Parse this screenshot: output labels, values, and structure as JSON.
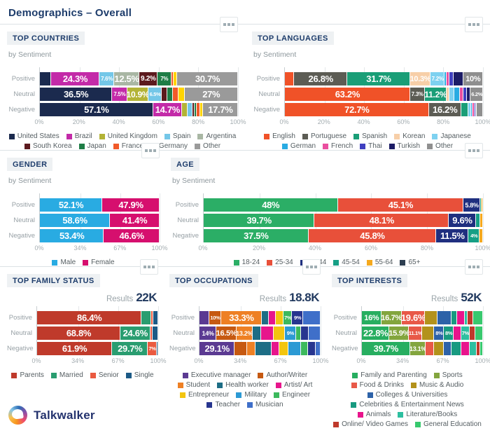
{
  "header": {
    "title": "Demographics – Overall"
  },
  "footer": {
    "logo_text": "Talkwalker",
    "logo_icon": "talkwalker-logo-icon"
  },
  "ui": {
    "menu_icon": "ellipsis-icon",
    "results_label": "Results"
  },
  "chart_data": [
    {
      "id": "top-countries",
      "type": "bar",
      "stacked": true,
      "orientation": "horizontal",
      "title": "TOP COUNTRIES",
      "subtitle": "by Sentiment",
      "results": null,
      "categories": [
        "Positive",
        "Neutral",
        "Negative"
      ],
      "xticks": [
        "0%",
        "20%",
        "40%",
        "60%",
        "80%",
        "100%"
      ],
      "xlim": [
        0,
        100
      ],
      "series": [
        {
          "name": "United States",
          "color": "#1b2a4e",
          "values": [
            5.7,
            36.5,
            57.1
          ],
          "labels": [
            null,
            "36.5%",
            "57.1%"
          ]
        },
        {
          "name": "Brazil",
          "color": "#c32aa8",
          "values": [
            24.3,
            7.5,
            14.7
          ],
          "labels": [
            "24.3%",
            "7.5%",
            "14.7%"
          ]
        },
        {
          "name": "United Kingdom",
          "color": "#b3b336",
          "values": [
            0,
            10.9,
            2.7
          ],
          "labels": [
            null,
            "10.9%",
            null
          ]
        },
        {
          "name": "Spain",
          "color": "#74c7e8",
          "values": [
            7.6,
            6.5,
            2.5
          ],
          "labels": [
            "7.6%",
            "6.5%",
            null
          ]
        },
        {
          "name": "Argentina",
          "color": "#a9b7a4",
          "values": [
            12.5,
            0,
            0
          ],
          "labels": [
            "12.5%",
            null,
            null
          ]
        },
        {
          "name": "South Korea",
          "color": "#5c1a1e",
          "values": [
            9.2,
            2.9,
            1.2
          ],
          "labels": [
            "9.2%",
            null,
            null
          ]
        },
        {
          "name": "Japan",
          "color": "#1e7d46",
          "values": [
            7,
            2.9,
            0.8
          ],
          "labels": [
            "7%",
            null,
            null
          ]
        },
        {
          "name": "France",
          "color": "#f15a29",
          "values": [
            1.3,
            2.9,
            2.0
          ],
          "labels": [
            null,
            null,
            null
          ]
        },
        {
          "name": "Germany",
          "color": "#ffd400",
          "values": [
            1.7,
            2.9,
            1.3
          ],
          "labels": [
            null,
            null,
            null
          ]
        },
        {
          "name": "Other",
          "color": "#9a9a9a",
          "values": [
            30.7,
            27,
            17.7
          ],
          "labels": [
            "30.7%",
            "27%",
            "17.7%"
          ]
        }
      ]
    },
    {
      "id": "top-languages",
      "type": "bar",
      "stacked": true,
      "orientation": "horizontal",
      "title": "TOP LANGUAGES",
      "subtitle": "by Sentiment",
      "results": null,
      "categories": [
        "Positive",
        "Neutral",
        "Negative"
      ],
      "xticks": [
        "0%",
        "20%",
        "40%",
        "60%",
        "80%",
        "100%"
      ],
      "xlim": [
        0,
        100
      ],
      "series": [
        {
          "name": "English",
          "color": "#f05228",
          "values": [
            4.7,
            63.2,
            72.7
          ],
          "labels": [
            null,
            "63.2%",
            "72.7%"
          ]
        },
        {
          "name": "Portuguese",
          "color": "#5c5c54",
          "values": [
            26.8,
            7.3,
            16.2
          ],
          "labels": [
            "26.8%",
            "7.3%",
            "16.2%"
          ]
        },
        {
          "name": "Spanish",
          "color": "#1a9e77",
          "values": [
            31.7,
            11.2,
            3.8
          ],
          "labels": [
            "31.7%",
            "11.2%",
            null
          ]
        },
        {
          "name": "Korean",
          "color": "#f7cfa8",
          "values": [
            10.3,
            1.5,
            0
          ],
          "labels": [
            "10.3%",
            null,
            null
          ]
        },
        {
          "name": "Japanese",
          "color": "#7ed1f0",
          "values": [
            7.2,
            2.5,
            1.2
          ],
          "labels": [
            "7.2%",
            null,
            null
          ]
        },
        {
          "name": "German",
          "color": "#29abe2",
          "values": [
            1.0,
            2.5,
            0.8
          ],
          "labels": [
            null,
            null,
            null
          ]
        },
        {
          "name": "French",
          "color": "#ea4f9f",
          "values": [
            1.5,
            1.8,
            1.2
          ],
          "labels": [
            null,
            null,
            null
          ]
        },
        {
          "name": "Thai",
          "color": "#4040c0",
          "values": [
            2.0,
            2.0,
            0.6
          ],
          "labels": [
            null,
            null,
            null
          ]
        },
        {
          "name": "Turkish",
          "color": "#1c1c66",
          "values": [
            4.8,
            1.8,
            0.5
          ],
          "labels": [
            null,
            null,
            null
          ]
        },
        {
          "name": "Other",
          "color": "#8f8f8f",
          "values": [
            10,
            6.2,
            3.0
          ],
          "labels": [
            "10%",
            "6.2%",
            null
          ]
        }
      ]
    },
    {
      "id": "gender",
      "type": "bar",
      "stacked": true,
      "orientation": "horizontal",
      "title": "GENDER",
      "subtitle": "by Sentiment",
      "results": null,
      "categories": [
        "Positive",
        "Neutral",
        "Negative"
      ],
      "xticks": [
        "0%",
        "34%",
        "67%",
        "100%"
      ],
      "xlim": [
        0,
        100
      ],
      "series": [
        {
          "name": "Male",
          "color": "#29abe2",
          "values": [
            52.1,
            58.6,
            53.4
          ],
          "labels": [
            "52.1%",
            "58.6%",
            "53.4%"
          ]
        },
        {
          "name": "Female",
          "color": "#d60f6e",
          "values": [
            47.9,
            41.4,
            46.6
          ],
          "labels": [
            "47.9%",
            "41.4%",
            "46.6%"
          ]
        }
      ]
    },
    {
      "id": "age",
      "type": "bar",
      "stacked": true,
      "orientation": "horizontal",
      "title": "AGE",
      "subtitle": "by Sentiment",
      "results": null,
      "categories": [
        "Positive",
        "Neutral",
        "Negative"
      ],
      "xticks": [
        "0%",
        "20%",
        "40%",
        "60%",
        "80%",
        "100%"
      ],
      "xlim": [
        0,
        100
      ],
      "series": [
        {
          "name": "18-24",
          "color": "#2bae66",
          "values": [
            48,
            39.7,
            37.5
          ],
          "labels": [
            "48%",
            "39.7%",
            "37.5%"
          ]
        },
        {
          "name": "25-34",
          "color": "#e8503a",
          "values": [
            45.1,
            48.1,
            45.8
          ],
          "labels": [
            "45.1%",
            "48.1%",
            "45.8%"
          ]
        },
        {
          "name": "35-44",
          "color": "#1f2f7f",
          "values": [
            5.8,
            9.6,
            11.5
          ],
          "labels": [
            "5.8%",
            "9.6%",
            "11.5%"
          ]
        },
        {
          "name": "45-54",
          "color": "#169f85",
          "values": [
            0.6,
            1.6,
            4.0
          ],
          "labels": [
            null,
            null,
            "4%"
          ]
        },
        {
          "name": "55-64",
          "color": "#f5a91e",
          "values": [
            0.5,
            1.0,
            1.2
          ],
          "labels": [
            null,
            null,
            null
          ]
        },
        {
          "name": "65+",
          "color": "#2c3e50",
          "values": [
            0,
            0,
            0
          ],
          "labels": [
            null,
            null,
            null
          ]
        }
      ]
    },
    {
      "id": "top-family-status",
      "type": "bar",
      "stacked": true,
      "orientation": "horizontal",
      "title": "TOP FAMILY STATUS",
      "subtitle": null,
      "results": "22K",
      "categories": [
        "Positive",
        "Neutral",
        "Negative"
      ],
      "xticks": [
        "0%",
        "34%",
        "67%",
        "100%"
      ],
      "xlim": [
        0,
        100
      ],
      "series": [
        {
          "name": "Parents",
          "color": "#bf3a2b",
          "values": [
            86.4,
            68.8,
            61.9
          ],
          "labels": [
            "86.4%",
            "68.8%",
            "61.9%"
          ]
        },
        {
          "name": "Married",
          "color": "#2a9d70",
          "values": [
            8.1,
            24.6,
            29.7
          ],
          "labels": [
            null,
            "24.6%",
            "29.7%"
          ]
        },
        {
          "name": "Senior",
          "color": "#ea5a40",
          "values": [
            1.5,
            2.1,
            7
          ],
          "labels": [
            null,
            null,
            "7%"
          ]
        },
        {
          "name": "Single",
          "color": "#1c5a86",
          "values": [
            4.0,
            4.5,
            1.4
          ],
          "labels": [
            null,
            null,
            null
          ]
        }
      ]
    },
    {
      "id": "top-occupations",
      "type": "bar",
      "stacked": true,
      "orientation": "horizontal",
      "title": "TOP OCCUPATIONS",
      "subtitle": null,
      "results": "18.8K",
      "categories": [
        "Positive",
        "Neutral",
        "Negative"
      ],
      "xticks": [
        "0%",
        "34%",
        "67%",
        "100%"
      ],
      "xlim": [
        0,
        100
      ],
      "series": [
        {
          "name": "Executive manager",
          "color": "#5b3a92",
          "values": [
            8,
            14,
            29.1
          ],
          "labels": [
            null,
            "14%",
            "29.1%"
          ]
        },
        {
          "name": "Author/Writer",
          "color": "#c65911",
          "values": [
            10,
            16.5,
            10.5
          ],
          "labels": [
            "10%",
            "16.5%",
            null
          ]
        },
        {
          "name": "Student",
          "color": "#ee8024",
          "values": [
            33.3,
            13.2,
            6.5
          ],
          "labels": [
            "33.3%",
            "13.2%",
            null
          ]
        },
        {
          "name": "Health worker",
          "color": "#1d6d85",
          "values": [
            6,
            7,
            13.5
          ],
          "labels": [
            null,
            null,
            null
          ]
        },
        {
          "name": "Artist/ Art",
          "color": "#e7168c",
          "values": [
            6,
            10.5,
            6.5
          ],
          "labels": [
            null,
            null,
            null
          ]
        },
        {
          "name": "Entrepreneur",
          "color": "#f3c50f",
          "values": [
            6.2,
            9.4,
            7.5
          ],
          "labels": [
            null,
            null,
            null
          ]
        },
        {
          "name": "Military",
          "color": "#2c9ad4",
          "values": [
            0,
            9,
            10.5
          ],
          "labels": [
            null,
            "9%",
            null
          ]
        },
        {
          "name": "Engineer",
          "color": "#3cb95d",
          "values": [
            7,
            4.2,
            5.5
          ],
          "labels": [
            "7%",
            null,
            null
          ]
        },
        {
          "name": "Teacher",
          "color": "#27358f",
          "values": [
            9,
            6.5,
            6.5
          ],
          "labels": [
            "9%",
            null,
            null
          ]
        },
        {
          "name": "Musician",
          "color": "#3f6fc9",
          "values": [
            14.5,
            9.7,
            3.9
          ],
          "labels": [
            null,
            null,
            null
          ]
        }
      ]
    },
    {
      "id": "top-interests",
      "type": "bar",
      "stacked": true,
      "orientation": "horizontal",
      "title": "TOP INTERESTS",
      "subtitle": null,
      "results": "52K",
      "categories": [
        "Positive",
        "Neutral",
        "Negative"
      ],
      "xticks": [
        "0%",
        "34%",
        "67%",
        "100%"
      ],
      "xlim": [
        0,
        100
      ],
      "series": [
        {
          "name": "Family and Parenting",
          "color": "#27ae60",
          "values": [
            16,
            22.8,
            39.7
          ],
          "labels": [
            "16%",
            "22.8%",
            "39.7%"
          ]
        },
        {
          "name": "Sports",
          "color": "#83a53e",
          "values": [
            16.7,
            15.9,
            13.1
          ],
          "labels": [
            "16.7%",
            "15.9%",
            "13.1%"
          ]
        },
        {
          "name": "Food & Drinks",
          "color": "#e85948",
          "values": [
            19.6,
            11.1,
            6.5
          ],
          "labels": [
            "19.6%",
            "11.1%",
            null
          ]
        },
        {
          "name": "Music & Audio",
          "color": "#b3921b",
          "values": [
            10.4,
            10,
            8.1
          ],
          "labels": [
            null,
            null,
            null
          ]
        },
        {
          "name": "Colleges & Universities",
          "color": "#2d62a8",
          "values": [
            11.3,
            8,
            6.9
          ],
          "labels": [
            null,
            "8%",
            null
          ]
        },
        {
          "name": "Celebrities & Entertainment News",
          "color": "#189a80",
          "values": [
            4.5,
            8,
            7.6
          ],
          "labels": [
            null,
            "8%",
            null
          ]
        },
        {
          "name": "Animals",
          "color": "#e8148c",
          "values": [
            6.5,
            6.2,
            7.4
          ],
          "labels": [
            null,
            null,
            null
          ]
        },
        {
          "name": "Literature/Books",
          "color": "#2dbfa0",
          "values": [
            2.5,
            7,
            5.8
          ],
          "labels": [
            null,
            "7%",
            null
          ]
        },
        {
          "name": "Online/ Video Games",
          "color": "#bf3a2b",
          "values": [
            4.5,
            4.6,
            2.4
          ],
          "labels": [
            null,
            null,
            null
          ]
        },
        {
          "name": "General Education",
          "color": "#38c96e",
          "values": [
            8,
            6.4,
            2.5
          ],
          "labels": [
            null,
            null,
            null
          ]
        }
      ]
    }
  ]
}
